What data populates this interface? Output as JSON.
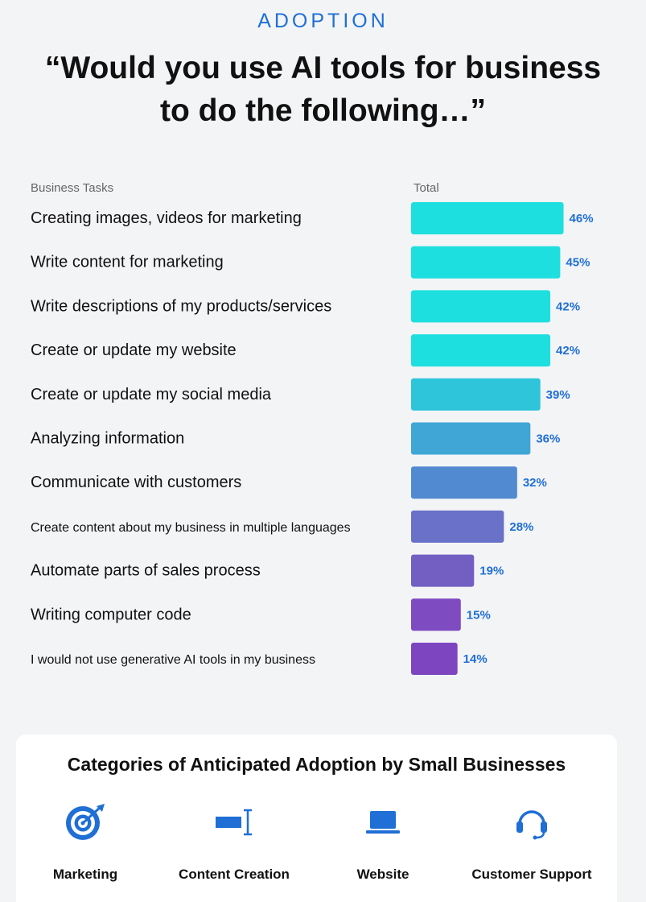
{
  "header": {
    "eyebrow": "ADOPTION",
    "title_line1": "“Would you use AI tools for business",
    "title_line2": "to do the following…”"
  },
  "chart_data": {
    "type": "bar",
    "orientation": "horizontal",
    "category_header": "Business Tasks",
    "value_header": "Total",
    "xlim": [
      0,
      100
    ],
    "categories": [
      "Creating images, videos for marketing",
      "Write content for marketing",
      "Write descriptions of my products/services",
      "Create or update my website",
      "Create or update my social media",
      "Analyzing information",
      "Communicate with customers",
      "Create content about my business in multiple languages",
      "Automate parts of sales process",
      "Writing computer code",
      "I would not use generative AI tools in my business"
    ],
    "values": [
      46,
      45,
      42,
      42,
      39,
      36,
      32,
      28,
      19,
      15,
      14
    ],
    "value_labels": [
      "46%",
      "45%",
      "42%",
      "42%",
      "39%",
      "36%",
      "32%",
      "28%",
      "19%",
      "15%",
      "14%"
    ],
    "bar_colors": [
      "#1edfdf",
      "#1edfdf",
      "#1edfdf",
      "#1edfdf",
      "#2ec4da",
      "#3fa6d6",
      "#528ad1",
      "#6a71c8",
      "#735fc2",
      "#7f4bc1",
      "#7e45c0"
    ],
    "label_color": "#1f6fd6",
    "grid": false
  },
  "categories_panel": {
    "title": "Categories of Anticipated Adoption by Small Businesses",
    "items": [
      {
        "label": "Marketing",
        "icon": "target-icon"
      },
      {
        "label": "Content Creation",
        "icon": "text-cursor-icon"
      },
      {
        "label": "Website",
        "icon": "laptop-icon"
      },
      {
        "label": "Customer Support",
        "icon": "headset-icon"
      }
    ],
    "icon_color": "#1f6fd6"
  }
}
